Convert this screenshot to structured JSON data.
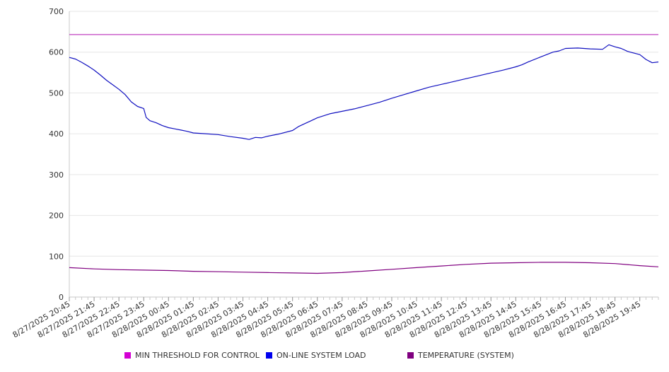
{
  "chart_data": {
    "type": "line",
    "title": "",
    "xlabel": "",
    "ylabel": "",
    "ylim": [
      0,
      700
    ],
    "y_ticks": [
      0,
      100,
      200,
      300,
      400,
      500,
      600,
      700
    ],
    "grid": "horizontal",
    "legend_position": "bottom",
    "x_tick_labels": [
      "8/27/2025 20:45",
      "8/27/2025 21:45",
      "8/27/2025 22:45",
      "8/27/2025 23:45",
      "8/28/2025 00:45",
      "8/28/2025 01:45",
      "8/28/2025 02:45",
      "8/28/2025 03:45",
      "8/28/2025 04:45",
      "8/28/2025 05:45",
      "8/28/2025 06:45",
      "8/28/2025 07:45",
      "8/28/2025 08:45",
      "8/28/2025 09:45",
      "8/28/2025 10:45",
      "8/28/2025 11:45",
      "8/28/2025 12:45",
      "8/28/2025 13:45",
      "8/28/2025 14:45",
      "8/28/2025 15:45",
      "8/28/2025 16:45",
      "8/28/2025 17:45",
      "8/28/2025 18:45",
      "8/28/2025 19:45"
    ],
    "x_range_hours": [
      0,
      23.75
    ],
    "series": [
      {
        "name": "MIN THRESHOLD FOR CONTROL",
        "color": "#d400d4",
        "line_color": "#c040c0",
        "points": [
          [
            0,
            643
          ],
          [
            23.75,
            643
          ]
        ]
      },
      {
        "name": "ON-LINE SYSTEM LOAD",
        "color": "#0000ee",
        "line_color": "#1010c0",
        "points": [
          [
            0,
            587
          ],
          [
            0.25,
            583
          ],
          [
            0.5,
            575
          ],
          [
            0.75,
            566
          ],
          [
            1.0,
            556
          ],
          [
            1.25,
            544
          ],
          [
            1.5,
            531
          ],
          [
            1.75,
            520
          ],
          [
            2.0,
            509
          ],
          [
            2.25,
            496
          ],
          [
            2.5,
            478
          ],
          [
            2.75,
            467
          ],
          [
            3.0,
            462
          ],
          [
            3.1,
            440
          ],
          [
            3.25,
            432
          ],
          [
            3.5,
            427
          ],
          [
            3.75,
            420
          ],
          [
            4.0,
            415
          ],
          [
            4.25,
            412
          ],
          [
            4.5,
            409
          ],
          [
            4.75,
            406
          ],
          [
            5.0,
            402
          ],
          [
            5.5,
            400
          ],
          [
            6.0,
            398
          ],
          [
            6.5,
            393
          ],
          [
            7.0,
            389
          ],
          [
            7.25,
            386
          ],
          [
            7.5,
            391
          ],
          [
            7.75,
            390
          ],
          [
            8.0,
            394
          ],
          [
            8.5,
            400
          ],
          [
            9.0,
            408
          ],
          [
            9.25,
            418
          ],
          [
            9.5,
            425
          ],
          [
            9.75,
            432
          ],
          [
            10.0,
            439
          ],
          [
            10.5,
            449
          ],
          [
            11.0,
            455
          ],
          [
            11.5,
            461
          ],
          [
            12.0,
            469
          ],
          [
            12.5,
            477
          ],
          [
            13.0,
            487
          ],
          [
            13.5,
            496
          ],
          [
            14.0,
            505
          ],
          [
            14.5,
            514
          ],
          [
            15.0,
            521
          ],
          [
            15.5,
            528
          ],
          [
            16.0,
            535
          ],
          [
            16.5,
            542
          ],
          [
            17.0,
            549
          ],
          [
            17.5,
            556
          ],
          [
            18.0,
            564
          ],
          [
            18.25,
            569
          ],
          [
            18.5,
            576
          ],
          [
            19.0,
            588
          ],
          [
            19.5,
            600
          ],
          [
            19.75,
            603
          ],
          [
            20.0,
            609
          ],
          [
            20.5,
            610
          ],
          [
            21.0,
            608
          ],
          [
            21.5,
            607
          ],
          [
            21.75,
            618
          ],
          [
            22.0,
            613
          ],
          [
            22.25,
            609
          ],
          [
            22.5,
            602
          ],
          [
            23.0,
            594
          ],
          [
            23.25,
            582
          ],
          [
            23.5,
            574
          ],
          [
            23.75,
            576
          ]
        ]
      },
      {
        "name": "TEMPERATURE (SYSTEM)",
        "color": "#800080",
        "line_color": "#800080",
        "points": [
          [
            0,
            72
          ],
          [
            1,
            69
          ],
          [
            2,
            67
          ],
          [
            3,
            66
          ],
          [
            4,
            65
          ],
          [
            5,
            63
          ],
          [
            6,
            62
          ],
          [
            7,
            61
          ],
          [
            8,
            60
          ],
          [
            9,
            59
          ],
          [
            10,
            58
          ],
          [
            11,
            60
          ],
          [
            12,
            64
          ],
          [
            13,
            68
          ],
          [
            14,
            72
          ],
          [
            15,
            76
          ],
          [
            16,
            80
          ],
          [
            17,
            83
          ],
          [
            18,
            84
          ],
          [
            19,
            85
          ],
          [
            20,
            85
          ],
          [
            21,
            84
          ],
          [
            22,
            82
          ],
          [
            23,
            77
          ],
          [
            23.75,
            74
          ]
        ]
      }
    ]
  }
}
